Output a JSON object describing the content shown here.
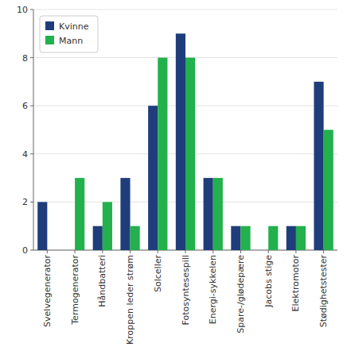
{
  "chart_data": {
    "type": "bar",
    "categories": [
      "Svelvegenerator",
      "Termogenerator",
      "Håndbatteri",
      "Kroppen leder strøm",
      "Solceller",
      "Fotosyntesespill",
      "Energi-sykkelen",
      "Spare-/glødepære",
      "Jacobs stige",
      "Elektromotor",
      "Stødighetstester"
    ],
    "series": [
      {
        "name": "Kvinne",
        "color": "#1f3d7a",
        "values": [
          2,
          0,
          1,
          3,
          6,
          9,
          3,
          1,
          0,
          1,
          7
        ]
      },
      {
        "name": "Mann",
        "color": "#22b14c",
        "values": [
          0,
          3,
          2,
          1,
          8,
          8,
          3,
          1,
          1,
          1,
          5
        ]
      }
    ],
    "ylim": [
      0,
      10
    ],
    "yticks": [
      0,
      2,
      4,
      6,
      8,
      10
    ],
    "grid": true,
    "legend": "upper left"
  }
}
